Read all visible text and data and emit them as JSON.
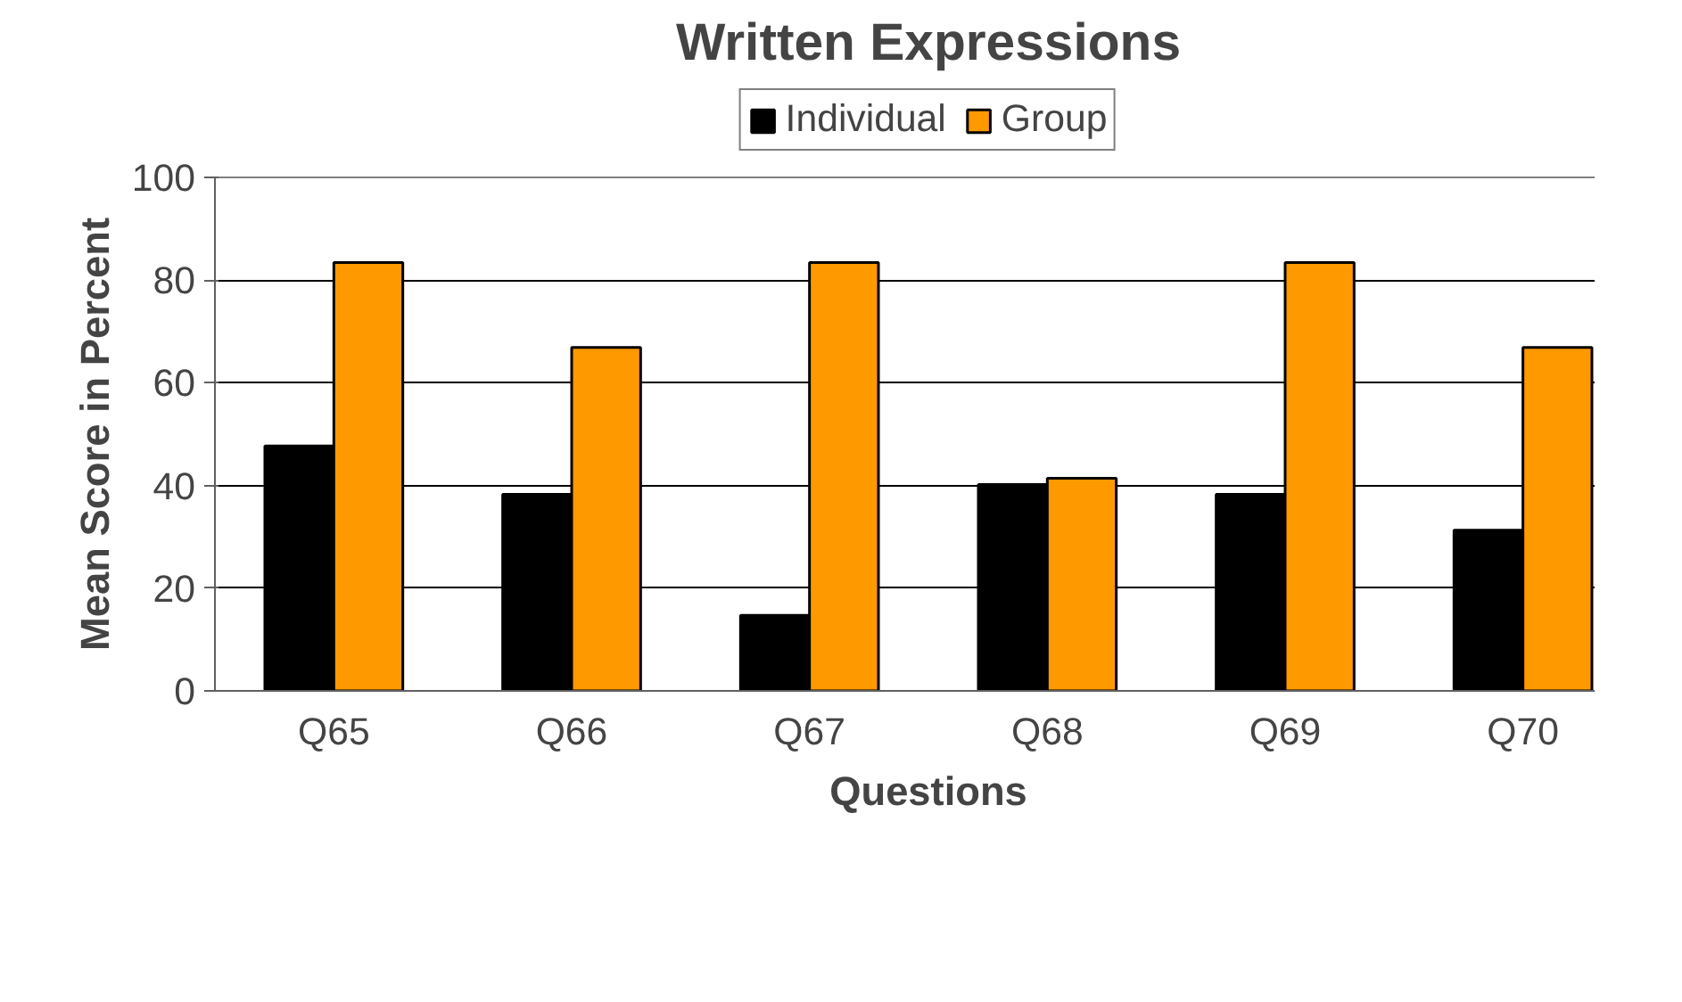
{
  "chart_data": {
    "type": "bar",
    "title": "Written Expressions",
    "xlabel": "Questions",
    "ylabel": "Mean Score in Percent",
    "categories": [
      "Q65",
      "Q66",
      "Q67",
      "Q68",
      "Q69",
      "Q70"
    ],
    "series": [
      {
        "name": "Individual",
        "color": "#000000",
        "values": [
          47.7,
          38.3,
          14.7,
          40.2,
          38.3,
          31.3
        ]
      },
      {
        "name": "Group",
        "color": "#ff9900",
        "values": [
          83.4,
          66.9,
          83.4,
          41.4,
          83.4,
          66.9
        ]
      }
    ],
    "ylim": [
      0,
      100
    ],
    "yticks": [
      0,
      20,
      40,
      60,
      80,
      100
    ],
    "grid": "y",
    "legend": "top"
  }
}
